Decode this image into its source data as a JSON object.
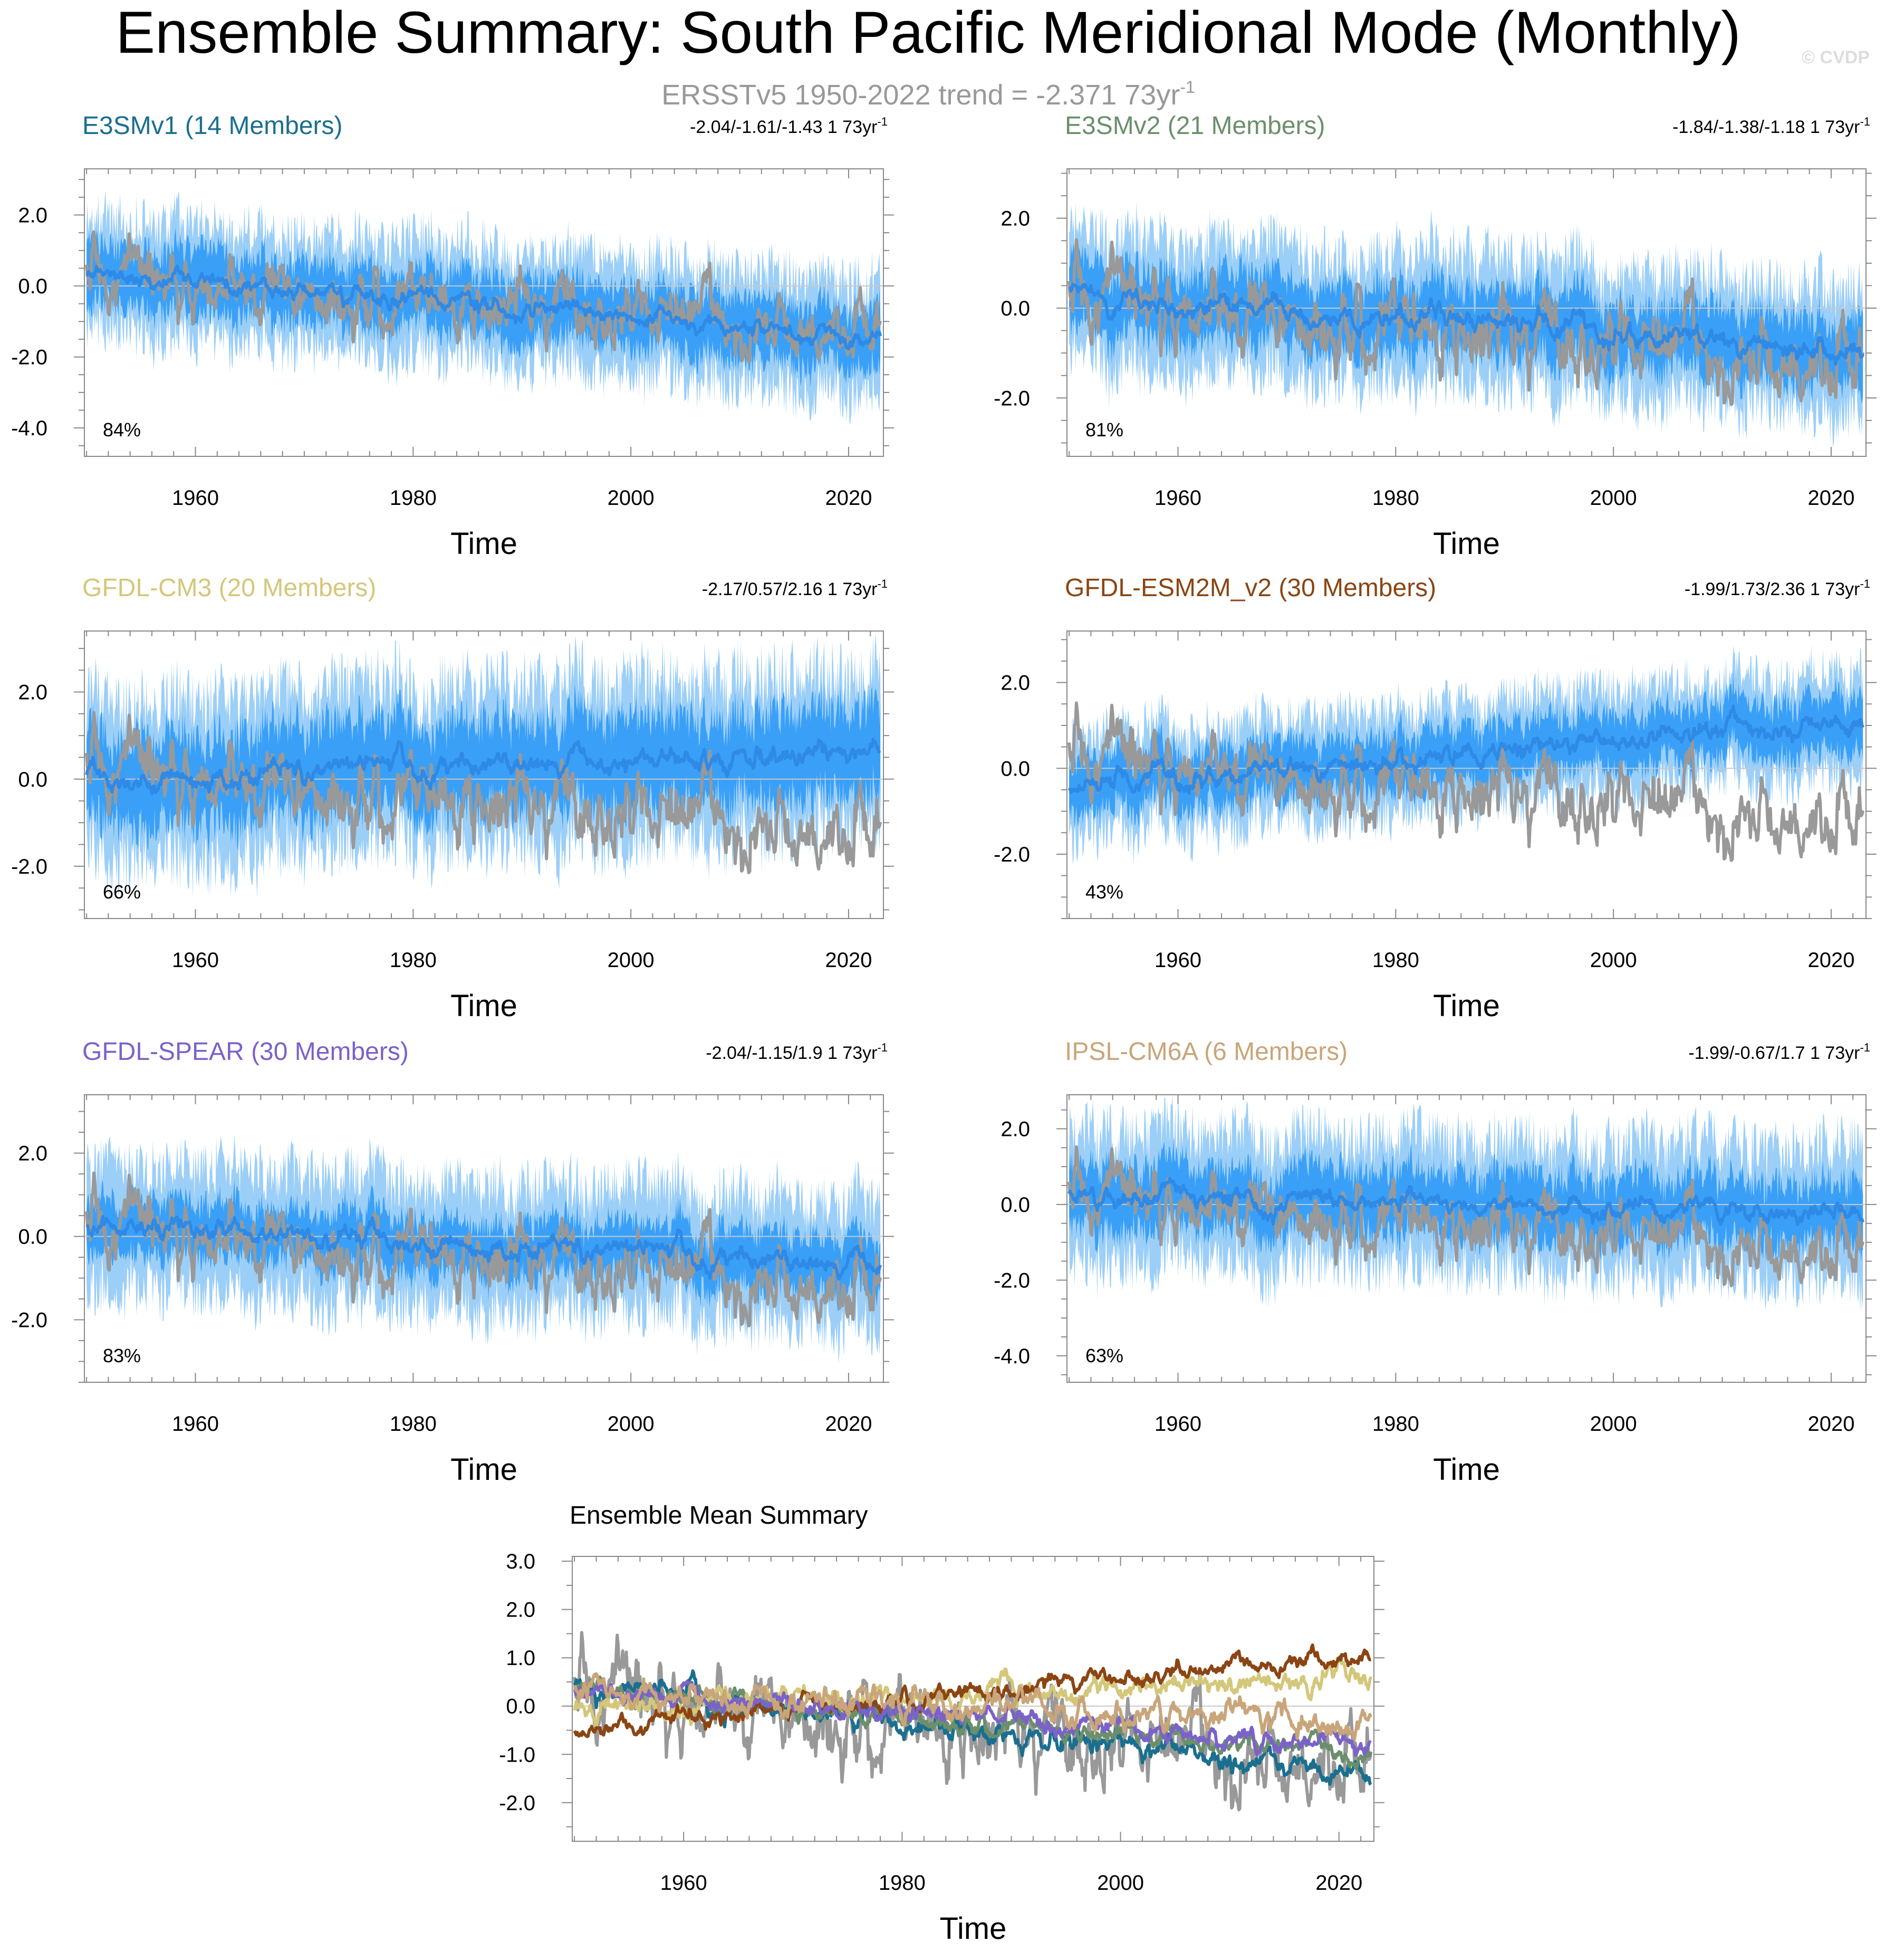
{
  "figure": {
    "title": "Ensemble Summary: South Pacific Meridional Mode (Monthly)",
    "copyright": "© CVDP",
    "subtitle_prefix": "ERSSTv5 1950-2022 trend = -2.371 73yr",
    "subtitle_sup": "-1"
  },
  "colors": {
    "obs": "#999999",
    "ens_mean_line": "#2e8ae6",
    "spread_outer": "#9ccff7",
    "spread_inner": "#3aa0f7",
    "zero_line": "#c8c8c8",
    "axis": "#888888",
    "subtitle": "#999999",
    "copyright": "#dddddd"
  },
  "chart_data": [
    {
      "id": "e3smv1",
      "type": "line",
      "title": "E3SMv1 (14 Members)",
      "title_color": "#1a6f8f",
      "trend_text": "-2.04/-1.61/-1.43 1 73yr",
      "trend_sup": "-1",
      "pct_label": "84%",
      "xlabel": "Time",
      "xlim": [
        1949.8,
        2023.2
      ],
      "ylim": [
        -4.8,
        3.3
      ],
      "xticks": [
        1960,
        1980,
        2000,
        2020
      ],
      "yticks": [
        2.0,
        0.0,
        -2.0,
        -4.0
      ],
      "ytick_labels": [
        "2.0",
        "0.0",
        "-2.0",
        "-4.0"
      ],
      "ensemble_mean_start": 0.35,
      "ensemble_mean_end": -1.45,
      "spread_inner_halfwidth": 0.9,
      "spread_outer_halfwidth": 1.6,
      "seed": 11
    },
    {
      "id": "e3smv2",
      "type": "line",
      "title": "E3SMv2 (21 Members)",
      "title_color": "#6b8f6b",
      "trend_text": "-1.84/-1.38/-1.18 1 73yr",
      "trend_sup": "-1",
      "pct_label": "81%",
      "xlabel": "Time",
      "xlim": [
        1949.8,
        2023.2
      ],
      "ylim": [
        -3.3,
        3.1
      ],
      "xticks": [
        1960,
        1980,
        2000,
        2020
      ],
      "yticks": [
        2.0,
        0.0,
        -2.0
      ],
      "ytick_labels": [
        "2.0",
        "0.0",
        "-2.0"
      ],
      "ensemble_mean_start": 0.3,
      "ensemble_mean_end": -1.0,
      "spread_inner_halfwidth": 0.8,
      "spread_outer_halfwidth": 1.4,
      "seed": 23
    },
    {
      "id": "gfdl-cm3",
      "type": "line",
      "title": "GFDL-CM3 (20 Members)",
      "title_color": "#d4c77a",
      "trend_text": "-2.17/0.57/2.16 1 73yr",
      "trend_sup": "-1",
      "pct_label": "66%",
      "xlabel": "Time",
      "xlim": [
        1949.8,
        2023.2
      ],
      "ylim": [
        -3.2,
        3.4
      ],
      "xticks": [
        1960,
        1980,
        2000,
        2020
      ],
      "yticks": [
        2.0,
        0.0,
        -2.0
      ],
      "ytick_labels": [
        "2.0",
        "0.0",
        "-2.0"
      ],
      "ensemble_mean_start": -0.05,
      "ensemble_mean_end": 0.55,
      "spread_inner_halfwidth": 1.1,
      "spread_outer_halfwidth": 1.8,
      "seed": 37
    },
    {
      "id": "gfdl-esm2m",
      "type": "line",
      "title": "GFDL-ESM2M_v2 (30 Members)",
      "title_color": "#8b4513",
      "trend_text": "-1.99/1.73/2.36 1 73yr",
      "trend_sup": "-1",
      "pct_label": "43%",
      "xlabel": "Time",
      "xlim": [
        1949.8,
        2023.2
      ],
      "ylim": [
        -3.5,
        3.2
      ],
      "xticks": [
        1960,
        1980,
        2000,
        2020
      ],
      "yticks": [
        2.0,
        0.0,
        -2.0
      ],
      "ytick_labels": [
        "2.0",
        "0.0",
        "-2.0"
      ],
      "ensemble_mean_start": -0.5,
      "ensemble_mean_end": 1.1,
      "spread_inner_halfwidth": 0.7,
      "spread_outer_halfwidth": 1.2,
      "seed": 41
    },
    {
      "id": "gfdl-spear",
      "type": "line",
      "title": "GFDL-SPEAR (30 Members)",
      "title_color": "#7b62c9",
      "trend_text": "-2.04/-1.15/1.9 1 73yr",
      "trend_sup": "-1",
      "pct_label": "83%",
      "xlabel": "Time",
      "xlim": [
        1949.8,
        2023.2
      ],
      "ylim": [
        -3.5,
        3.4
      ],
      "xticks": [
        1960,
        1980,
        2000,
        2020
      ],
      "yticks": [
        2.0,
        0.0,
        -2.0
      ],
      "ytick_labels": [
        "2.0",
        "0.0",
        "-2.0"
      ],
      "ensemble_mean_start": 0.3,
      "ensemble_mean_end": -0.8,
      "spread_inner_halfwidth": 0.7,
      "spread_outer_halfwidth": 1.5,
      "seed": 53
    },
    {
      "id": "ipsl-cm6a",
      "type": "line",
      "title": "IPSL-CM6A (6 Members)",
      "title_color": "#c9a57a",
      "trend_text": "-1.99/-0.67/1.7 1 73yr",
      "trend_sup": "-1",
      "pct_label": "63%",
      "xlabel": "Time",
      "xlim": [
        1949.8,
        2023.2
      ],
      "ylim": [
        -4.7,
        2.9
      ],
      "xticks": [
        1960,
        1980,
        2000,
        2020
      ],
      "yticks": [
        2.0,
        0.0,
        -2.0,
        -4.0
      ],
      "ytick_labels": [
        "2.0",
        "0.0",
        "-2.0",
        "-4.0"
      ],
      "ensemble_mean_start": 0.3,
      "ensemble_mean_end": -0.3,
      "spread_inner_halfwidth": 0.9,
      "spread_outer_halfwidth": 1.7,
      "seed": 67
    },
    {
      "id": "ensemble-mean-summary",
      "type": "line",
      "title": "Ensemble Mean Summary",
      "xlabel": "Time",
      "xlim": [
        1949.8,
        2023.2
      ],
      "ylim": [
        -2.8,
        3.1
      ],
      "xticks": [
        1960,
        1980,
        2000,
        2020
      ],
      "yticks": [
        3.0,
        2.0,
        1.0,
        0.0,
        -1.0,
        -2.0
      ],
      "ytick_labels": [
        "3.0",
        "2.0",
        "1.0",
        "0.0",
        "-1.0",
        "-2.0"
      ],
      "series": [
        {
          "name": "ERSSTv5",
          "color": "#999999",
          "start": 0.2,
          "end": -1.3,
          "amp": 0.75,
          "seed": 5
        },
        {
          "name": "E3SMv1",
          "color": "#1a6f8f",
          "start": 0.35,
          "end": -1.45,
          "amp": 0.22,
          "seed": 11
        },
        {
          "name": "E3SMv2",
          "color": "#6b8f6b",
          "start": 0.3,
          "end": -1.0,
          "amp": 0.2,
          "seed": 23
        },
        {
          "name": "GFDL-CM3",
          "color": "#d4c77a",
          "start": -0.05,
          "end": 0.55,
          "amp": 0.22,
          "seed": 37
        },
        {
          "name": "GFDL-ESM2M_v2",
          "color": "#8b4513",
          "start": -0.5,
          "end": 1.1,
          "amp": 0.18,
          "seed": 41
        },
        {
          "name": "GFDL-SPEAR",
          "color": "#7b62c9",
          "start": 0.3,
          "end": -0.8,
          "amp": 0.18,
          "seed": 53
        },
        {
          "name": "IPSL-CM6A",
          "color": "#c9a57a",
          "start": 0.3,
          "end": -0.3,
          "amp": 0.25,
          "seed": 67
        }
      ]
    }
  ],
  "observations": {
    "name": "ERSSTv5",
    "trend_start": 0.2,
    "trend_end": -1.3,
    "amplitude": 0.75,
    "seed": 5,
    "start_year": 1950,
    "end_year": 2023
  }
}
